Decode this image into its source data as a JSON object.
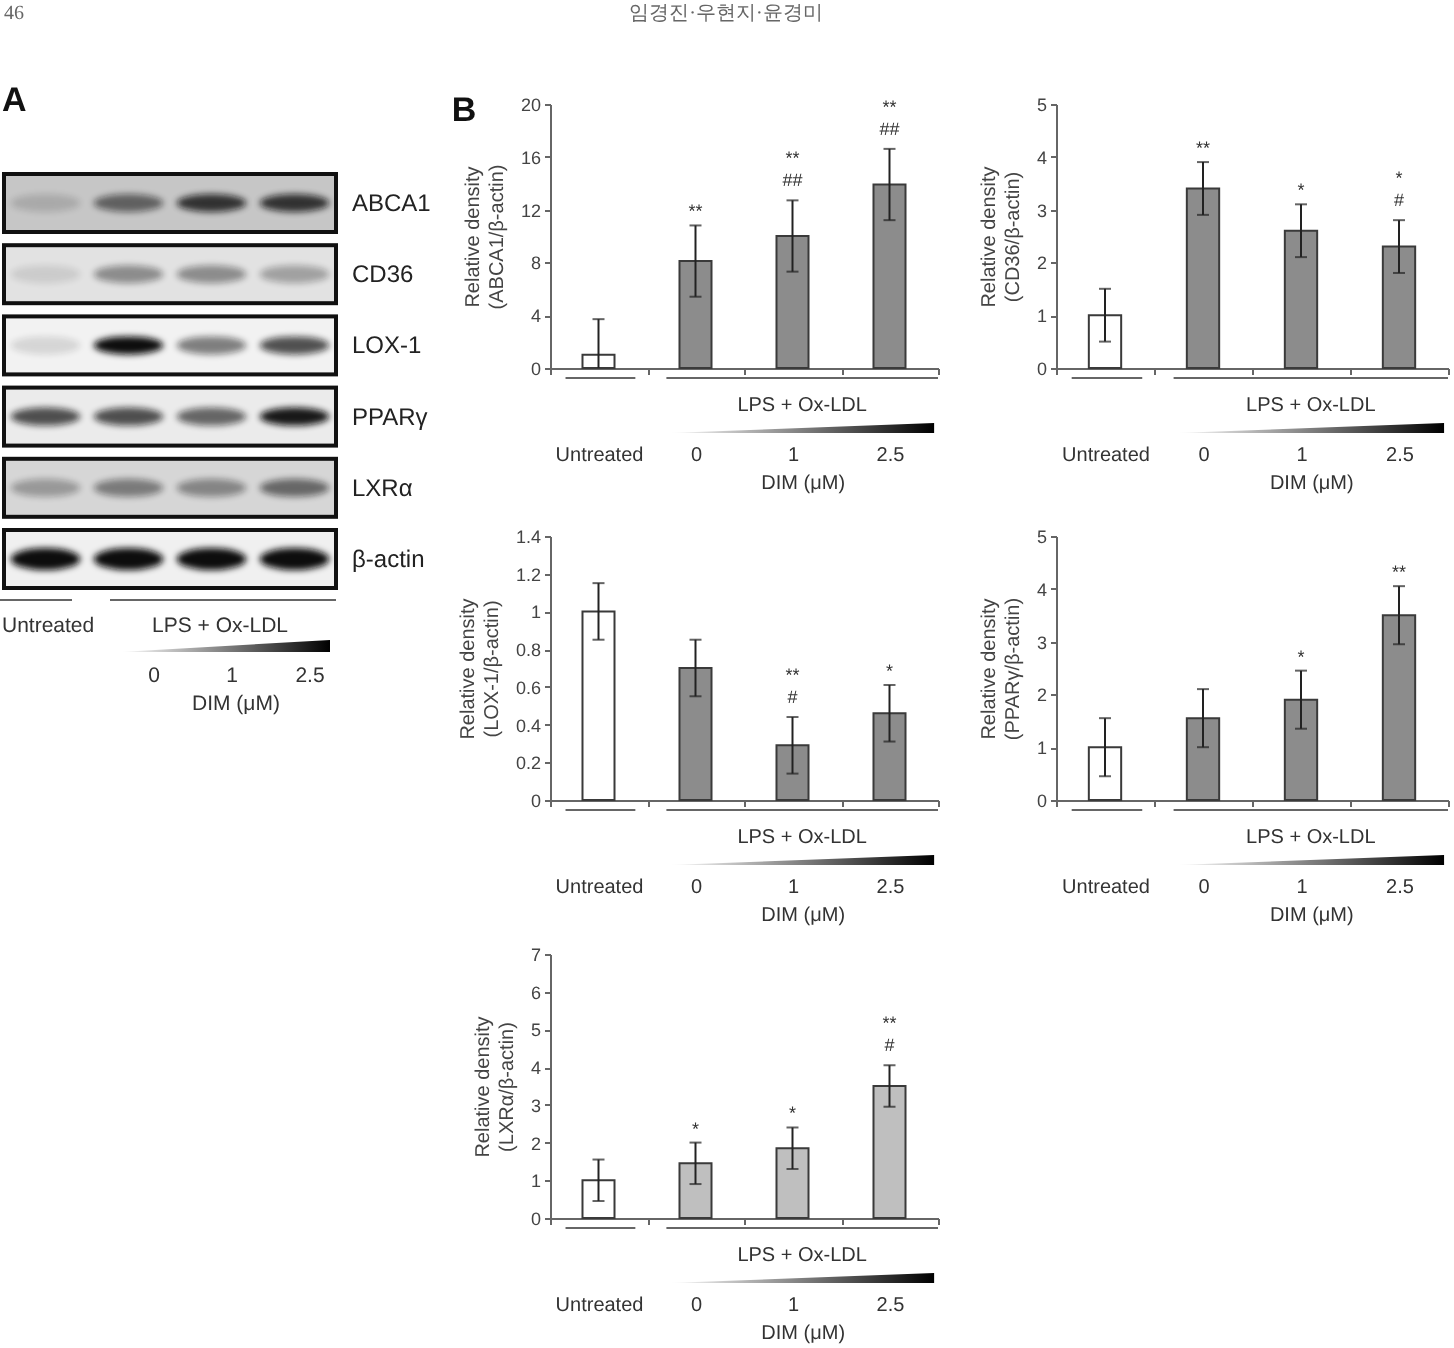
{
  "chart_data": [
    {
      "type": "other",
      "title": "A",
      "annotations": [
        "46",
        "임경진·우현지·윤경미",
        "LPS + Ox-LDL"
      ],
      "y_categories": [
        "ABCA1",
        "CD36",
        "LOX-1",
        "PPARγ",
        "LXRα",
        "β-actin"
      ],
      "categories": [
        "Untreated",
        "0",
        "1",
        "2.5"
      ],
      "xlabel": "DIM (μM)"
    },
    {
      "type": "bar",
      "title": "B",
      "ylabel": "Relative density\n(ABCA1/β-actin)",
      "xlabel": "DIM (μM)",
      "categories": [
        "Untreated",
        "0",
        "1",
        "2.5"
      ],
      "values": [
        1.0,
        8.1,
        10.0,
        13.9
      ],
      "colors": [
        "#ffffff",
        "#8c8c8c",
        "#8c8c8c",
        "#8c8c8c"
      ],
      "errors": [
        [
          0,
          3.7
        ],
        2.7,
        2.7,
        2.7
      ],
      "ylim": [
        0,
        20
      ],
      "yticks": [
        0,
        4,
        8,
        12,
        16,
        20
      ],
      "annotations": [
        "LPS + Ox-LDL",
        {
          "text": "**",
          "x": "0",
          "y": 8.1
        },
        {
          "text": "**\n##",
          "x": "1",
          "y": 10.0
        },
        {
          "text": "**\n##",
          "x": "2.5",
          "y": 13.9
        }
      ]
    },
    {
      "type": "bar",
      "ylabel": "Relative density\n(CD36/β-actin)",
      "xlabel": "DIM (μM)",
      "categories": [
        "Untreated",
        "0",
        "1",
        "2.5"
      ],
      "values": [
        1.0,
        3.4,
        2.6,
        2.3
      ],
      "colors": [
        "#ffffff",
        "#8c8c8c",
        "#8c8c8c",
        "#8c8c8c"
      ],
      "errors": [
        0.5,
        0.5,
        0.5,
        0.5
      ],
      "ylim": [
        0,
        5
      ],
      "yticks": [
        0,
        1,
        2,
        3,
        4,
        5
      ],
      "annotations": [
        "LPS + Ox-LDL",
        {
          "text": "**",
          "x": "0",
          "y": 3.4
        },
        {
          "text": "*",
          "x": "1",
          "y": 2.6
        },
        {
          "text": "*\n#",
          "x": "2.5",
          "y": 2.3
        }
      ]
    },
    {
      "type": "bar",
      "ylabel": "Relative density\n(LOX-1/β-actin)",
      "xlabel": "DIM (μM)",
      "categories": [
        "Untreated",
        "0",
        "1",
        "2.5"
      ],
      "values": [
        1.0,
        0.7,
        0.29,
        0.46
      ],
      "colors": [
        "#ffffff",
        "#8c8c8c",
        "#8c8c8c",
        "#8c8c8c"
      ],
      "errors": [
        0.15,
        0.15,
        0.15,
        0.15
      ],
      "ylim": [
        0,
        1.4
      ],
      "yticks": [
        0,
        0.2,
        0.4,
        0.6,
        0.8,
        1,
        1.2,
        1.4
      ],
      "annotations": [
        "LPS + Ox-LDL",
        {
          "text": "**\n#",
          "x": "1",
          "y": 0.29
        },
        {
          "text": "*",
          "x": "2.5",
          "y": 0.46
        }
      ]
    },
    {
      "type": "bar",
      "ylabel": "Relative density\n(PPARγ/β-actin)",
      "xlabel": "DIM (μM)",
      "categories": [
        "Untreated",
        "0",
        "1",
        "2.5"
      ],
      "values": [
        1.0,
        1.55,
        1.9,
        3.5
      ],
      "colors": [
        "#ffffff",
        "#8c8c8c",
        "#8c8c8c",
        "#8c8c8c"
      ],
      "errors": [
        0.55,
        0.55,
        0.55,
        0.55
      ],
      "ylim": [
        0,
        5
      ],
      "yticks": [
        0,
        1,
        2,
        3,
        4,
        5
      ],
      "annotations": [
        "LPS + Ox-LDL",
        {
          "text": "*",
          "x": "1",
          "y": 1.9
        },
        {
          "text": "**",
          "x": "2.5",
          "y": 3.5
        }
      ]
    },
    {
      "type": "bar",
      "ylabel": "Relative density\n(LXRα/β-actin)",
      "xlabel": "DIM (μM)",
      "categories": [
        "Untreated",
        "0",
        "1",
        "2.5"
      ],
      "values": [
        1.0,
        1.45,
        1.85,
        3.5
      ],
      "colors": [
        "#ffffff",
        "#bfbfbf",
        "#bfbfbf",
        "#bfbfbf"
      ],
      "errors": [
        0.55,
        0.55,
        0.55,
        0.55
      ],
      "ylim": [
        0,
        7
      ],
      "yticks": [
        0,
        1,
        2,
        3,
        4,
        5,
        6,
        7
      ],
      "annotations": [
        "LPS + Ox-LDL",
        {
          "text": "*",
          "x": "0",
          "y": 1.45
        },
        {
          "text": "*",
          "x": "1",
          "y": 1.85
        },
        {
          "text": "**\n#",
          "x": "2.5",
          "y": 3.5
        }
      ]
    }
  ]
}
